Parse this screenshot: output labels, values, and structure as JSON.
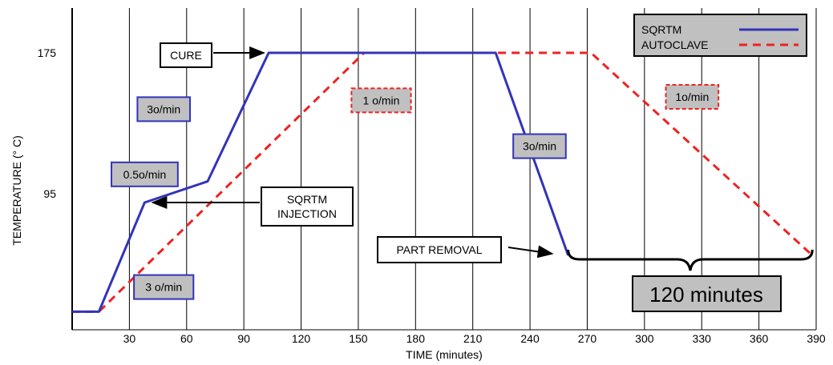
{
  "chart_data": {
    "type": "line",
    "title": "",
    "xlabel": "TIME (minutes)",
    "ylabel": "TEMPERATURE (° C)",
    "xlim": [
      0,
      390
    ],
    "x_ticks": [
      30,
      60,
      90,
      120,
      150,
      180,
      210,
      240,
      270,
      300,
      330,
      360,
      390
    ],
    "y_ticks": [
      95,
      175
    ],
    "grid": "vertical",
    "legend_position": "top-right",
    "series": [
      {
        "name": "SQRTM",
        "color": "#3333bb",
        "style": "solid",
        "x": [
          0,
          14,
          38,
          71,
          103,
          222,
          260
        ],
        "y": [
          28,
          28,
          90,
          102,
          175,
          175,
          60
        ]
      },
      {
        "name": "AUTOCLAVE",
        "color": "#ee2222",
        "style": "dashed",
        "x": [
          0,
          14,
          153,
          272,
          388
        ],
        "y": [
          28,
          28,
          175,
          175,
          60
        ]
      }
    ],
    "rate_labels": [
      {
        "text": "3o/min",
        "series": "SQRTM",
        "x": 48,
        "y": 143
      },
      {
        "text": "0.5o/min",
        "series": "SQRTM",
        "x": 38,
        "y": 106
      },
      {
        "text": "3 o/min",
        "series": "SQRTM",
        "x": 48,
        "y": 42
      },
      {
        "text": "3o/min",
        "series": "SQRTM",
        "x": 245,
        "y": 122
      },
      {
        "text": "1 o/min",
        "series": "AUTOCLAVE",
        "x": 162,
        "y": 148
      },
      {
        "text": "1o/min",
        "series": "AUTOCLAVE",
        "x": 325,
        "y": 150
      }
    ],
    "annotations": [
      {
        "text": "CURE",
        "points_to": {
          "x": 103,
          "y": 175
        }
      },
      {
        "text": "SQRTM INJECTION",
        "points_to": {
          "x": 38,
          "y": 90
        }
      },
      {
        "text": "PART REMOVAL",
        "points_to": {
          "x": 260,
          "y": 60
        }
      }
    ],
    "span_label": {
      "text": "120 minutes",
      "x_start": 260,
      "x_end": 388
    }
  },
  "colors": {
    "label_fill": "#c0c0c0",
    "grid": "#000000"
  }
}
